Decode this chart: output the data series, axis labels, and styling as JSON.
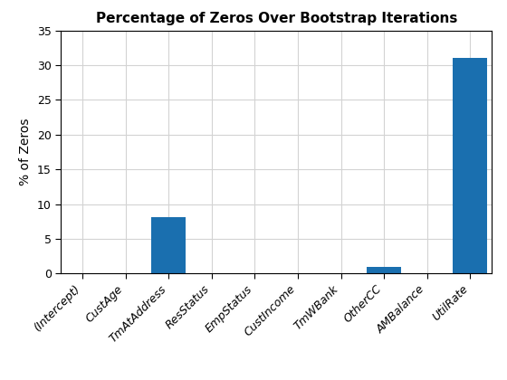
{
  "categories": [
    "(Intercept)",
    "CustAge",
    "TmAtAddress",
    "ResStatus",
    "EmpStatus",
    "CustIncome",
    "TmWBank",
    "OtherCC",
    "AMBalance",
    "UtilRate"
  ],
  "values": [
    0,
    0,
    8.1,
    0,
    0,
    0,
    0,
    1.0,
    0,
    31.0
  ],
  "bar_color": "#1a6faf",
  "title": "Percentage of Zeros Over Bootstrap Iterations",
  "ylabel": "% of Zeros",
  "ylim": [
    0,
    35
  ],
  "yticks": [
    0,
    5,
    10,
    15,
    20,
    25,
    30,
    35
  ],
  "title_fontsize": 11,
  "label_fontsize": 10,
  "tick_fontsize": 9,
  "background_color": "#ffffff",
  "grid_color": "#d3d3d3"
}
